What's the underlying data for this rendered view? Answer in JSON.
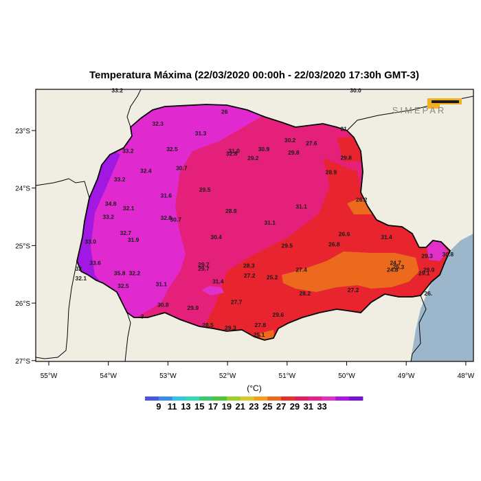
{
  "title": "Temperatura Máxima (22/03/2020 00:00h - 22/03/2020 17:30h GMT-3)",
  "logo_text": "SIMEPAR",
  "colors": {
    "ocean": "#9cb6cc",
    "land": "#f0eee3",
    "border": "#000000"
  },
  "axes": {
    "x_ticks": [
      {
        "lon": -55,
        "label": "55°W"
      },
      {
        "lon": -54,
        "label": "54°W"
      },
      {
        "lon": -53,
        "label": "53°W"
      },
      {
        "lon": -52,
        "label": "52°W"
      },
      {
        "lon": -51,
        "label": "51°W"
      },
      {
        "lon": -50,
        "label": "50°W"
      },
      {
        "lon": -49,
        "label": "49°W"
      },
      {
        "lon": -48,
        "label": "48°W"
      }
    ],
    "y_ticks": [
      {
        "lat": -23,
        "label": "23°S"
      },
      {
        "lat": -24,
        "label": "24°S"
      },
      {
        "lat": -25,
        "label": "25°S"
      },
      {
        "lat": -26,
        "label": "26°S"
      },
      {
        "lat": -27,
        "label": "27°S"
      }
    ],
    "lon_range": [
      -55.3,
      -47.7
    ],
    "lat_range": [
      -27.0,
      -22.3
    ]
  },
  "colorbar": {
    "unit": "(°C)",
    "tick_labels": [
      "9",
      "11",
      "13",
      "15",
      "17",
      "19",
      "21",
      "23",
      "25",
      "27",
      "29",
      "31",
      "33"
    ],
    "colors": [
      "#4a55e0",
      "#3a8ce8",
      "#35c4e8",
      "#35d8b8",
      "#3ac870",
      "#4ec43a",
      "#9ad02e",
      "#d8c82a",
      "#f0a020",
      "#ec6a1e",
      "#e8302a",
      "#e41e5e",
      "#e2208e",
      "#e030c8",
      "#a818e0",
      "#7a10d8"
    ]
  },
  "stations": [
    {
      "lon": -53.85,
      "lat": -22.3,
      "value": "33.2"
    },
    {
      "lon": -49.85,
      "lat": -22.3,
      "value": "30.0"
    },
    {
      "lon": -52.05,
      "lat": -22.67,
      "value": "26"
    },
    {
      "lon": -53.17,
      "lat": -22.88,
      "value": "32.3"
    },
    {
      "lon": -52.45,
      "lat": -23.05,
      "value": "31.3"
    },
    {
      "lon": -50.95,
      "lat": -23.17,
      "value": "30.2"
    },
    {
      "lon": -50.05,
      "lat": -22.97,
      "value": "31"
    },
    {
      "lon": -53.67,
      "lat": -23.35,
      "value": "33.2"
    },
    {
      "lon": -52.93,
      "lat": -23.32,
      "value": "32.5"
    },
    {
      "lon": -51.89,
      "lat": -23.35,
      "value": "31.0"
    },
    {
      "lon": -51.93,
      "lat": -23.4,
      "value": "32.8"
    },
    {
      "lon": -51.39,
      "lat": -23.32,
      "value": "30.9"
    },
    {
      "lon": -50.59,
      "lat": -23.22,
      "value": "27.6"
    },
    {
      "lon": -50.89,
      "lat": -23.38,
      "value": "29.8"
    },
    {
      "lon": -51.57,
      "lat": -23.48,
      "value": "29.2"
    },
    {
      "lon": -50.01,
      "lat": -23.47,
      "value": "29.8"
    },
    {
      "lon": -53.37,
      "lat": -23.7,
      "value": "32.4"
    },
    {
      "lon": -52.77,
      "lat": -23.65,
      "value": "30.7"
    },
    {
      "lon": -50.26,
      "lat": -23.72,
      "value": "28.9"
    },
    {
      "lon": -53.81,
      "lat": -23.85,
      "value": "33.2"
    },
    {
      "lon": -52.38,
      "lat": -24.03,
      "value": "29.5"
    },
    {
      "lon": -53.03,
      "lat": -24.13,
      "value": "31.6"
    },
    {
      "lon": -49.75,
      "lat": -24.2,
      "value": "26.2"
    },
    {
      "lon": -53.96,
      "lat": -24.27,
      "value": "34.8"
    },
    {
      "lon": -53.66,
      "lat": -24.35,
      "value": "32.1"
    },
    {
      "lon": -50.76,
      "lat": -24.32,
      "value": "31.1"
    },
    {
      "lon": -51.94,
      "lat": -24.4,
      "value": "28.9"
    },
    {
      "lon": -54.0,
      "lat": -24.5,
      "value": "33.2"
    },
    {
      "lon": -53.03,
      "lat": -24.52,
      "value": "32.8"
    },
    {
      "lon": -52.87,
      "lat": -24.55,
      "value": "30.7"
    },
    {
      "lon": -51.29,
      "lat": -24.6,
      "value": "31.1"
    },
    {
      "lon": -53.71,
      "lat": -24.78,
      "value": "32.7"
    },
    {
      "lon": -53.58,
      "lat": -24.9,
      "value": "31.9"
    },
    {
      "lon": -52.19,
      "lat": -24.85,
      "value": "30.4"
    },
    {
      "lon": -50.04,
      "lat": -24.8,
      "value": "26.6"
    },
    {
      "lon": -49.33,
      "lat": -24.85,
      "value": "31.4"
    },
    {
      "lon": -54.3,
      "lat": -24.93,
      "value": "33.0"
    },
    {
      "lon": -51.0,
      "lat": -25.0,
      "value": "29.5"
    },
    {
      "lon": -50.21,
      "lat": -24.98,
      "value": "26.8"
    },
    {
      "lon": -48.65,
      "lat": -25.18,
      "value": "29.3"
    },
    {
      "lon": -48.3,
      "lat": -25.15,
      "value": "30.8"
    },
    {
      "lon": -54.22,
      "lat": -25.3,
      "value": "33.6"
    },
    {
      "lon": -52.4,
      "lat": -25.33,
      "value": "29.7"
    },
    {
      "lon": -52.4,
      "lat": -25.4,
      "value": "29.7"
    },
    {
      "lon": -51.64,
      "lat": -25.35,
      "value": "28.3"
    },
    {
      "lon": -49.18,
      "lat": -25.3,
      "value": "24.7"
    },
    {
      "lon": -49.13,
      "lat": -25.37,
      "value": "25.3"
    },
    {
      "lon": -49.23,
      "lat": -25.42,
      "value": "24.8"
    },
    {
      "lon": -54.5,
      "lat": -25.4,
      "value": "32"
    },
    {
      "lon": -50.76,
      "lat": -25.42,
      "value": "27.4"
    },
    {
      "lon": -48.62,
      "lat": -25.42,
      "value": "29.0"
    },
    {
      "lon": -48.7,
      "lat": -25.48,
      "value": "29.1"
    },
    {
      "lon": -53.81,
      "lat": -25.48,
      "value": "35.8"
    },
    {
      "lon": -53.56,
      "lat": -25.48,
      "value": "32.2"
    },
    {
      "lon": -51.63,
      "lat": -25.52,
      "value": "27.2"
    },
    {
      "lon": -51.25,
      "lat": -25.55,
      "value": "25.2"
    },
    {
      "lon": -54.46,
      "lat": -25.57,
      "value": "32.1"
    },
    {
      "lon": -52.16,
      "lat": -25.62,
      "value": "31.4"
    },
    {
      "lon": -53.75,
      "lat": -25.7,
      "value": "32.5"
    },
    {
      "lon": -53.11,
      "lat": -25.67,
      "value": "31.1"
    },
    {
      "lon": -49.89,
      "lat": -25.77,
      "value": "27.2"
    },
    {
      "lon": -50.7,
      "lat": -25.83,
      "value": "28.2"
    },
    {
      "lon": -48.63,
      "lat": -25.83,
      "value": "26."
    },
    {
      "lon": -51.85,
      "lat": -25.98,
      "value": "27.7"
    },
    {
      "lon": -53.08,
      "lat": -26.03,
      "value": "30.8"
    },
    {
      "lon": -52.58,
      "lat": -26.08,
      "value": "29.9"
    },
    {
      "lon": -51.15,
      "lat": -26.2,
      "value": "29.6"
    },
    {
      "lon": -53.43,
      "lat": -26.23,
      "value": "3"
    },
    {
      "lon": -52.33,
      "lat": -26.38,
      "value": "28.5"
    },
    {
      "lon": -51.45,
      "lat": -26.38,
      "value": "27.8"
    },
    {
      "lon": -51.95,
      "lat": -26.43,
      "value": "29.3"
    },
    {
      "lon": -51.47,
      "lat": -26.55,
      "value": "25.1"
    }
  ]
}
